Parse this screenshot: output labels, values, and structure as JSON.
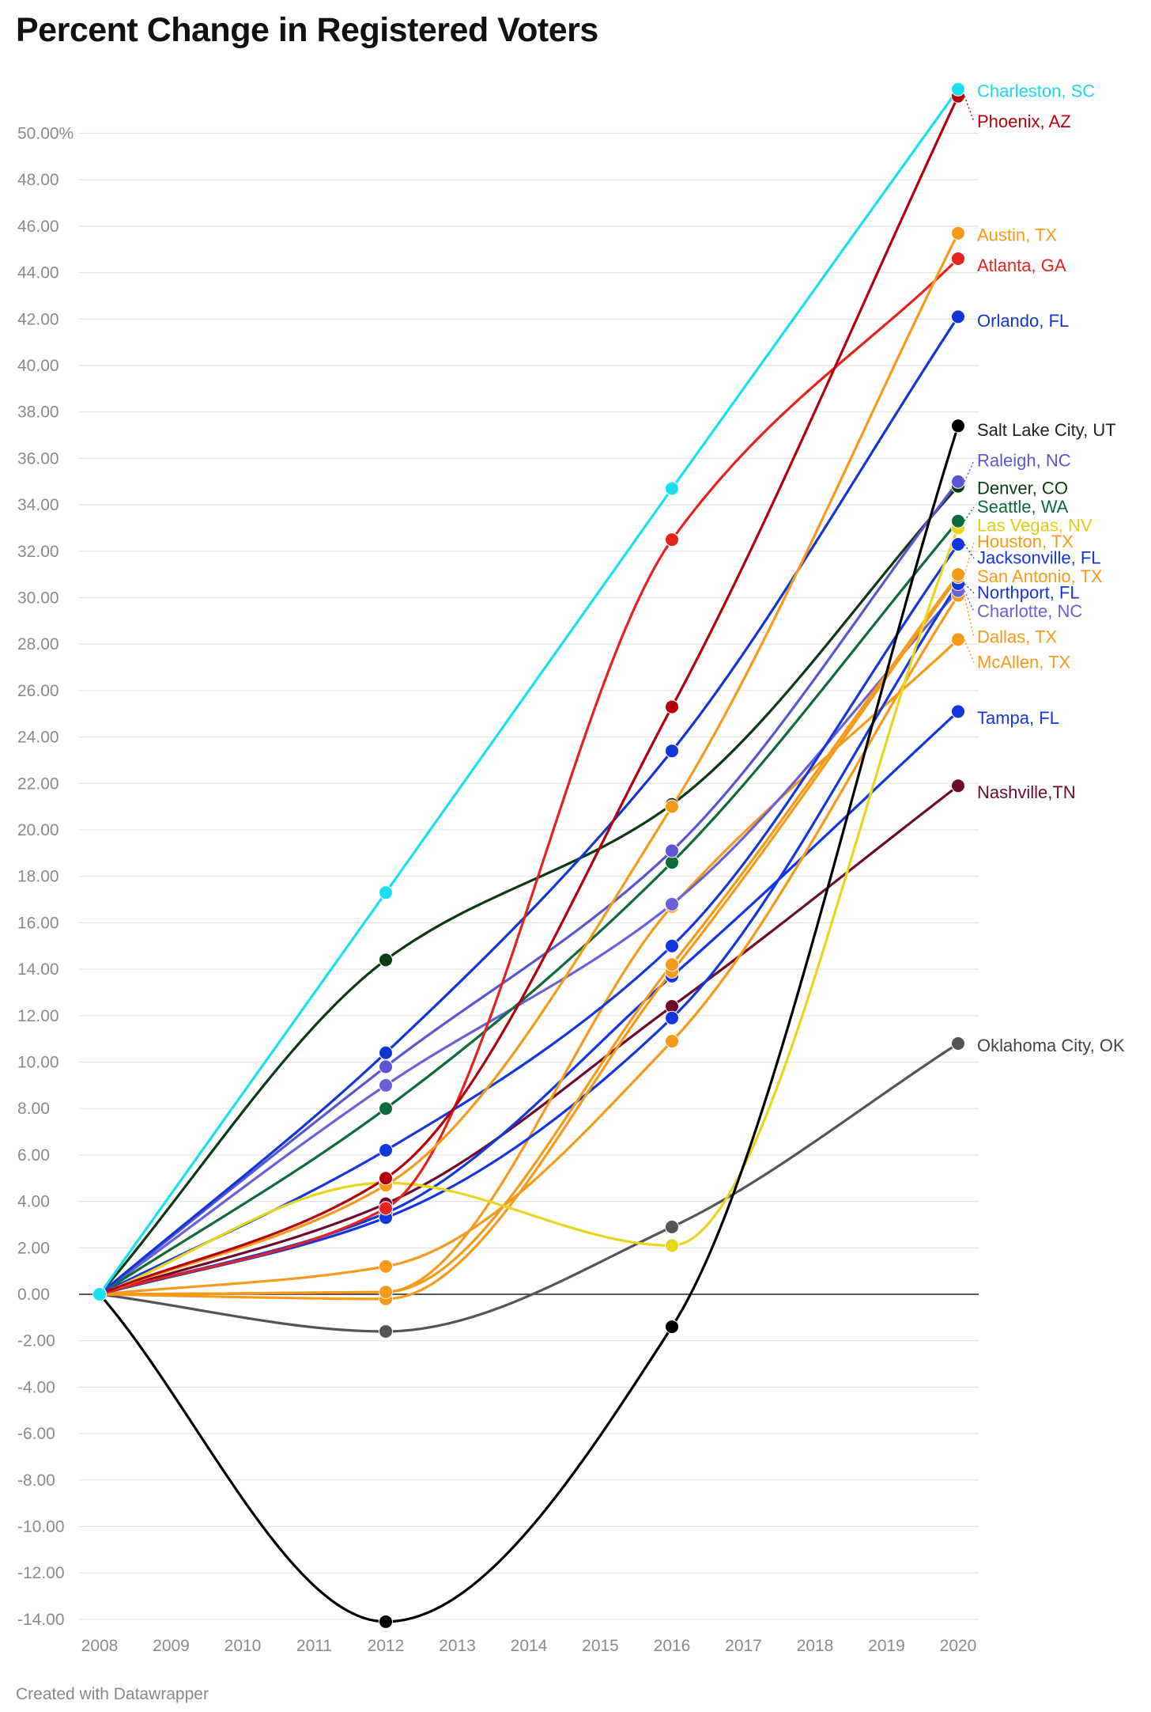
{
  "title": "Percent Change in Registered Voters",
  "credit": "Created with Datawrapper",
  "chart_data": {
    "type": "line",
    "title": "Percent Change in Registered Voters",
    "xlabel": "",
    "ylabel": "",
    "x_ticks": [
      "2008",
      "2009",
      "2010",
      "2011",
      "2012",
      "2013",
      "2014",
      "2015",
      "2016",
      "2017",
      "2018",
      "2019",
      "2020"
    ],
    "y_ticks": [
      "50.00%",
      "48.00",
      "46.00",
      "44.00",
      "42.00",
      "40.00",
      "38.00",
      "36.00",
      "34.00",
      "32.00",
      "30.00",
      "28.00",
      "26.00",
      "24.00",
      "22.00",
      "20.00",
      "18.00",
      "16.00",
      "14.00",
      "12.00",
      "10.00",
      "8.00",
      "6.00",
      "4.00",
      "2.00",
      "0.00",
      "-2.00",
      "-4.00",
      "-6.00",
      "-8.00",
      "-10.00",
      "-12.00",
      "-14.00"
    ],
    "y_tick_values": [
      50,
      48,
      46,
      44,
      42,
      40,
      38,
      36,
      34,
      32,
      30,
      28,
      26,
      24,
      22,
      20,
      18,
      16,
      14,
      12,
      10,
      8,
      6,
      4,
      2,
      0,
      -2,
      -4,
      -6,
      -8,
      -10,
      -12,
      -14
    ],
    "xlim": [
      2008,
      2020
    ],
    "ylim": [
      -14,
      52
    ],
    "grid": true,
    "x": [
      2008,
      2012,
      2016,
      2020
    ],
    "series": [
      {
        "name": "Charleston, SC",
        "color": "#18e0f0",
        "values": [
          0,
          17.3,
          34.7,
          51.9
        ]
      },
      {
        "name": "Phoenix, AZ",
        "color": "#b3000c",
        "values": [
          0,
          5.0,
          25.3,
          51.6
        ]
      },
      {
        "name": "Austin, TX",
        "color": "#f59a1a",
        "values": [
          0,
          4.7,
          21.0,
          45.7
        ]
      },
      {
        "name": "Atlanta, GA",
        "color": "#e3231c",
        "values": [
          0,
          3.7,
          32.5,
          44.6
        ]
      },
      {
        "name": "Orlando, FL",
        "color": "#1037d6",
        "values": [
          0,
          10.4,
          23.4,
          42.1
        ]
      },
      {
        "name": "Salt Lake City, UT",
        "color": "#000000",
        "values": [
          0,
          -14.1,
          -1.4,
          37.4
        ]
      },
      {
        "name": "Raleigh, NC",
        "color": "#5a55d2",
        "values": [
          0,
          9.8,
          19.1,
          35.0
        ]
      },
      {
        "name": "Denver, CO",
        "color": "#0a3a12",
        "values": [
          0,
          14.4,
          21.1,
          34.8
        ]
      },
      {
        "name": "Seattle, WA",
        "color": "#0e6b3a",
        "values": [
          0,
          8.0,
          18.6,
          33.3
        ]
      },
      {
        "name": "Las Vegas, NV",
        "color": "#e8d51c",
        "values": [
          0,
          4.8,
          2.1,
          33.0
        ]
      },
      {
        "name": "Houston, TX",
        "color": "#f59a1a",
        "values": [
          0,
          0.1,
          14.2,
          31.0
        ]
      },
      {
        "name": "Jacksonville, FL",
        "color": "#1237e0",
        "values": [
          0,
          6.2,
          15.0,
          32.3
        ]
      },
      {
        "name": "San Antonio, TX",
        "color": "#f59a1a",
        "values": [
          0,
          -0.2,
          13.9,
          30.9
        ]
      },
      {
        "name": "Northport, FL",
        "color": "#1237e0",
        "values": [
          0,
          3.3,
          11.9,
          30.6
        ]
      },
      {
        "name": "Charlotte, NC",
        "color": "#6a60d8",
        "values": [
          0,
          9.0,
          16.8,
          30.3
        ]
      },
      {
        "name": "Dallas, TX",
        "color": "#f59a1a",
        "values": [
          0,
          1.2,
          10.9,
          30.1
        ]
      },
      {
        "name": "McAllen, TX",
        "color": "#f59a1a",
        "values": [
          0,
          0.1,
          16.7,
          28.2
        ]
      },
      {
        "name": "Tampa, FL",
        "color": "#1237e0",
        "values": [
          0,
          3.5,
          13.7,
          25.1
        ]
      },
      {
        "name": "Nashville,TN",
        "color": "#6e0a2e",
        "values": [
          0,
          3.9,
          12.4,
          21.9
        ]
      },
      {
        "name": "Oklahoma City, OK",
        "color": "#555555",
        "values": [
          0,
          -1.6,
          2.9,
          10.8
        ]
      }
    ],
    "labels": [
      {
        "series": "Charleston, SC",
        "text": "Charleston, SC",
        "color": "#18d8ec",
        "y": 51.8
      },
      {
        "series": "Phoenix, AZ",
        "text": "Phoenix, AZ",
        "color": "#b3000c",
        "y": 50.5
      },
      {
        "series": "Austin, TX",
        "text": "Austin, TX",
        "color": "#f59a1a",
        "y": 45.6
      },
      {
        "series": "Atlanta, GA",
        "text": "Atlanta, GA",
        "color": "#e3231c",
        "y": 44.3
      },
      {
        "series": "Orlando, FL",
        "text": "Orlando, FL",
        "color": "#1037d6",
        "y": 41.9
      },
      {
        "series": "Salt Lake City, UT",
        "text": "Salt Lake City, UT",
        "color": "#222222",
        "y": 37.2
      },
      {
        "series": "Raleigh, NC",
        "text": "Raleigh, NC",
        "color": "#5a55d2",
        "y": 35.9
      },
      {
        "series": "Denver, CO",
        "text": "Denver, CO",
        "color": "#0a3a12",
        "y": 34.7
      },
      {
        "series": "Seattle, WA",
        "text": "Seattle, WA",
        "color": "#0e6b3a",
        "y": 33.9
      },
      {
        "series": "Las Vegas, NV",
        "text": "Las Vegas, NV",
        "color": "#e0cc10",
        "y": 33.1
      },
      {
        "series": "Houston, TX",
        "text": "Houston, TX",
        "color": "#f59a1a",
        "y": 32.4
      },
      {
        "series": "Jacksonville, FL",
        "text": "Jacksonville, FL",
        "color": "#1237e0",
        "y": 31.7
      },
      {
        "series": "San Antonio, TX",
        "text": "San Antonio, TX",
        "color": "#f59a1a",
        "y": 30.9
      },
      {
        "series": "Northport, FL",
        "text": "Northport, FL",
        "color": "#1237e0",
        "y": 30.2
      },
      {
        "series": "Charlotte, NC",
        "text": "Charlotte, NC",
        "color": "#6a60d8",
        "y": 29.4
      },
      {
        "series": "Dallas, TX",
        "text": "Dallas, TX",
        "color": "#f59a1a",
        "y": 28.3
      },
      {
        "series": "McAllen, TX",
        "text": "McAllen, TX",
        "color": "#f59a1a",
        "y": 27.2
      },
      {
        "series": "Tampa, FL",
        "text": "Tampa, FL",
        "color": "#1237e0",
        "y": 24.8
      },
      {
        "series": "Nashville,TN",
        "text": "Nashville,TN",
        "color": "#6e0a2e",
        "y": 21.6
      },
      {
        "series": "Oklahoma City, OK",
        "text": "Oklahoma City, OK",
        "color": "#444444",
        "y": 10.7
      }
    ]
  }
}
